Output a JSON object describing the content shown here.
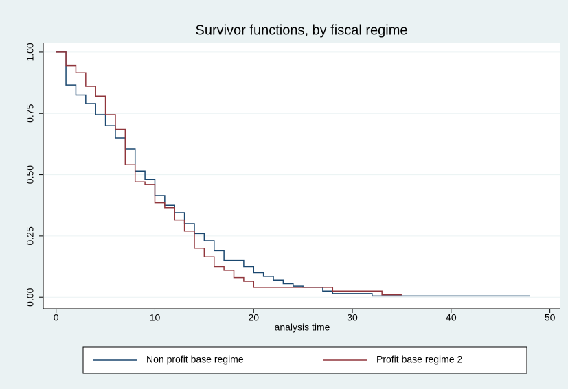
{
  "chart_data": {
    "type": "step",
    "title": "Survivor functions, by fiscal regime",
    "x_label": "analysis time",
    "xlim": [
      -1.3,
      51
    ],
    "xticks": [
      0,
      10,
      20,
      30,
      40,
      50
    ],
    "ylim": [
      -0.047,
      1.039
    ],
    "yticks": [
      {
        "value": 0,
        "label": "0.00"
      },
      {
        "value": 0.25,
        "label": "0.25"
      },
      {
        "value": 0.5,
        "label": "0.50"
      },
      {
        "value": 0.75,
        "label": "0.75"
      },
      {
        "value": 1,
        "label": "1.00"
      }
    ],
    "grid": true,
    "legend": "bottom",
    "series": [
      {
        "name": "Non profit base regime",
        "color": "#1a476f",
        "x": [
          0,
          1,
          2,
          3,
          4,
          5,
          6,
          7,
          8,
          9,
          10,
          11,
          12,
          13,
          14,
          15,
          16,
          17,
          19,
          20,
          21,
          22,
          23,
          24,
          25,
          27,
          28,
          32,
          48
        ],
        "values": [
          1.0,
          0.865,
          0.825,
          0.79,
          0.745,
          0.7,
          0.65,
          0.605,
          0.515,
          0.48,
          0.415,
          0.375,
          0.345,
          0.3,
          0.26,
          0.23,
          0.19,
          0.15,
          0.125,
          0.1,
          0.085,
          0.07,
          0.055,
          0.045,
          0.04,
          0.025,
          0.015,
          0.005,
          0.005
        ]
      },
      {
        "name": "Profit base regime 2",
        "color": "#90353b",
        "x": [
          0,
          1,
          2,
          3,
          4,
          5,
          6,
          7,
          8,
          9,
          10,
          11,
          12,
          13,
          14,
          15,
          16,
          17,
          18,
          19,
          20,
          28,
          33,
          35
        ],
        "values": [
          1.0,
          0.945,
          0.915,
          0.86,
          0.82,
          0.745,
          0.685,
          0.54,
          0.47,
          0.46,
          0.385,
          0.365,
          0.315,
          0.27,
          0.2,
          0.165,
          0.125,
          0.11,
          0.08,
          0.065,
          0.04,
          0.025,
          0.01,
          0.01
        ]
      }
    ]
  }
}
